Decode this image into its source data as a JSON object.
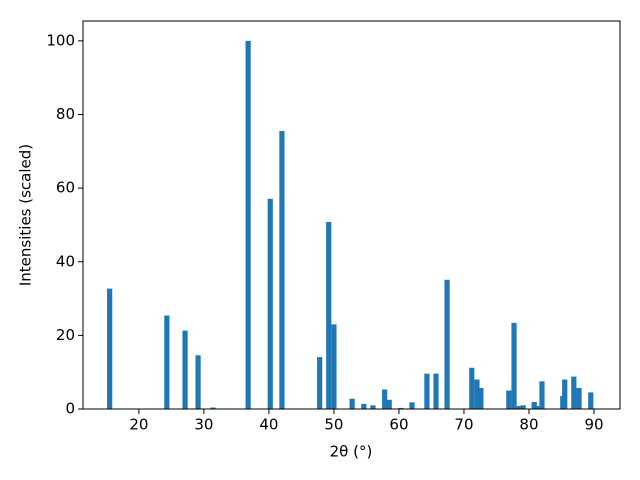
{
  "chart_data": {
    "type": "bar",
    "xlabel": "2θ (°)",
    "ylabel": "Intensities (scaled)",
    "x": [
      15.5,
      24.3,
      27.1,
      29.1,
      31.4,
      36.8,
      40.2,
      42.0,
      47.8,
      49.2,
      50.0,
      52.8,
      54.6,
      56.0,
      57.8,
      58.5,
      60.3,
      62.0,
      64.3,
      65.7,
      67.4,
      71.2,
      72.0,
      72.6,
      76.9,
      77.7,
      78.5,
      79.1,
      80.8,
      81.2,
      82.0,
      85.2,
      85.5,
      86.9,
      87.7,
      89.5
    ],
    "values": [
      32.7,
      25.4,
      21.3,
      14.6,
      0.4,
      100,
      57.1,
      75.5,
      14.1,
      50.8,
      23.0,
      2.8,
      1.4,
      1.0,
      5.3,
      2.5,
      0.3,
      1.8,
      9.6,
      9.6,
      35.1,
      11.2,
      8.0,
      5.7,
      5.0,
      23.4,
      0.8,
      1.0,
      1.9,
      0.8,
      7.5,
      3.5,
      8.0,
      8.8,
      5.7,
      4.5
    ],
    "color": "#1f77b4",
    "xlim": [
      11.4,
      94.0
    ],
    "xticks": [
      20,
      30,
      40,
      50,
      60,
      70,
      80,
      90
    ],
    "ylim": [
      0,
      105.4
    ],
    "yticks": [
      0,
      20,
      40,
      60,
      80,
      100
    ],
    "grid": false
  }
}
